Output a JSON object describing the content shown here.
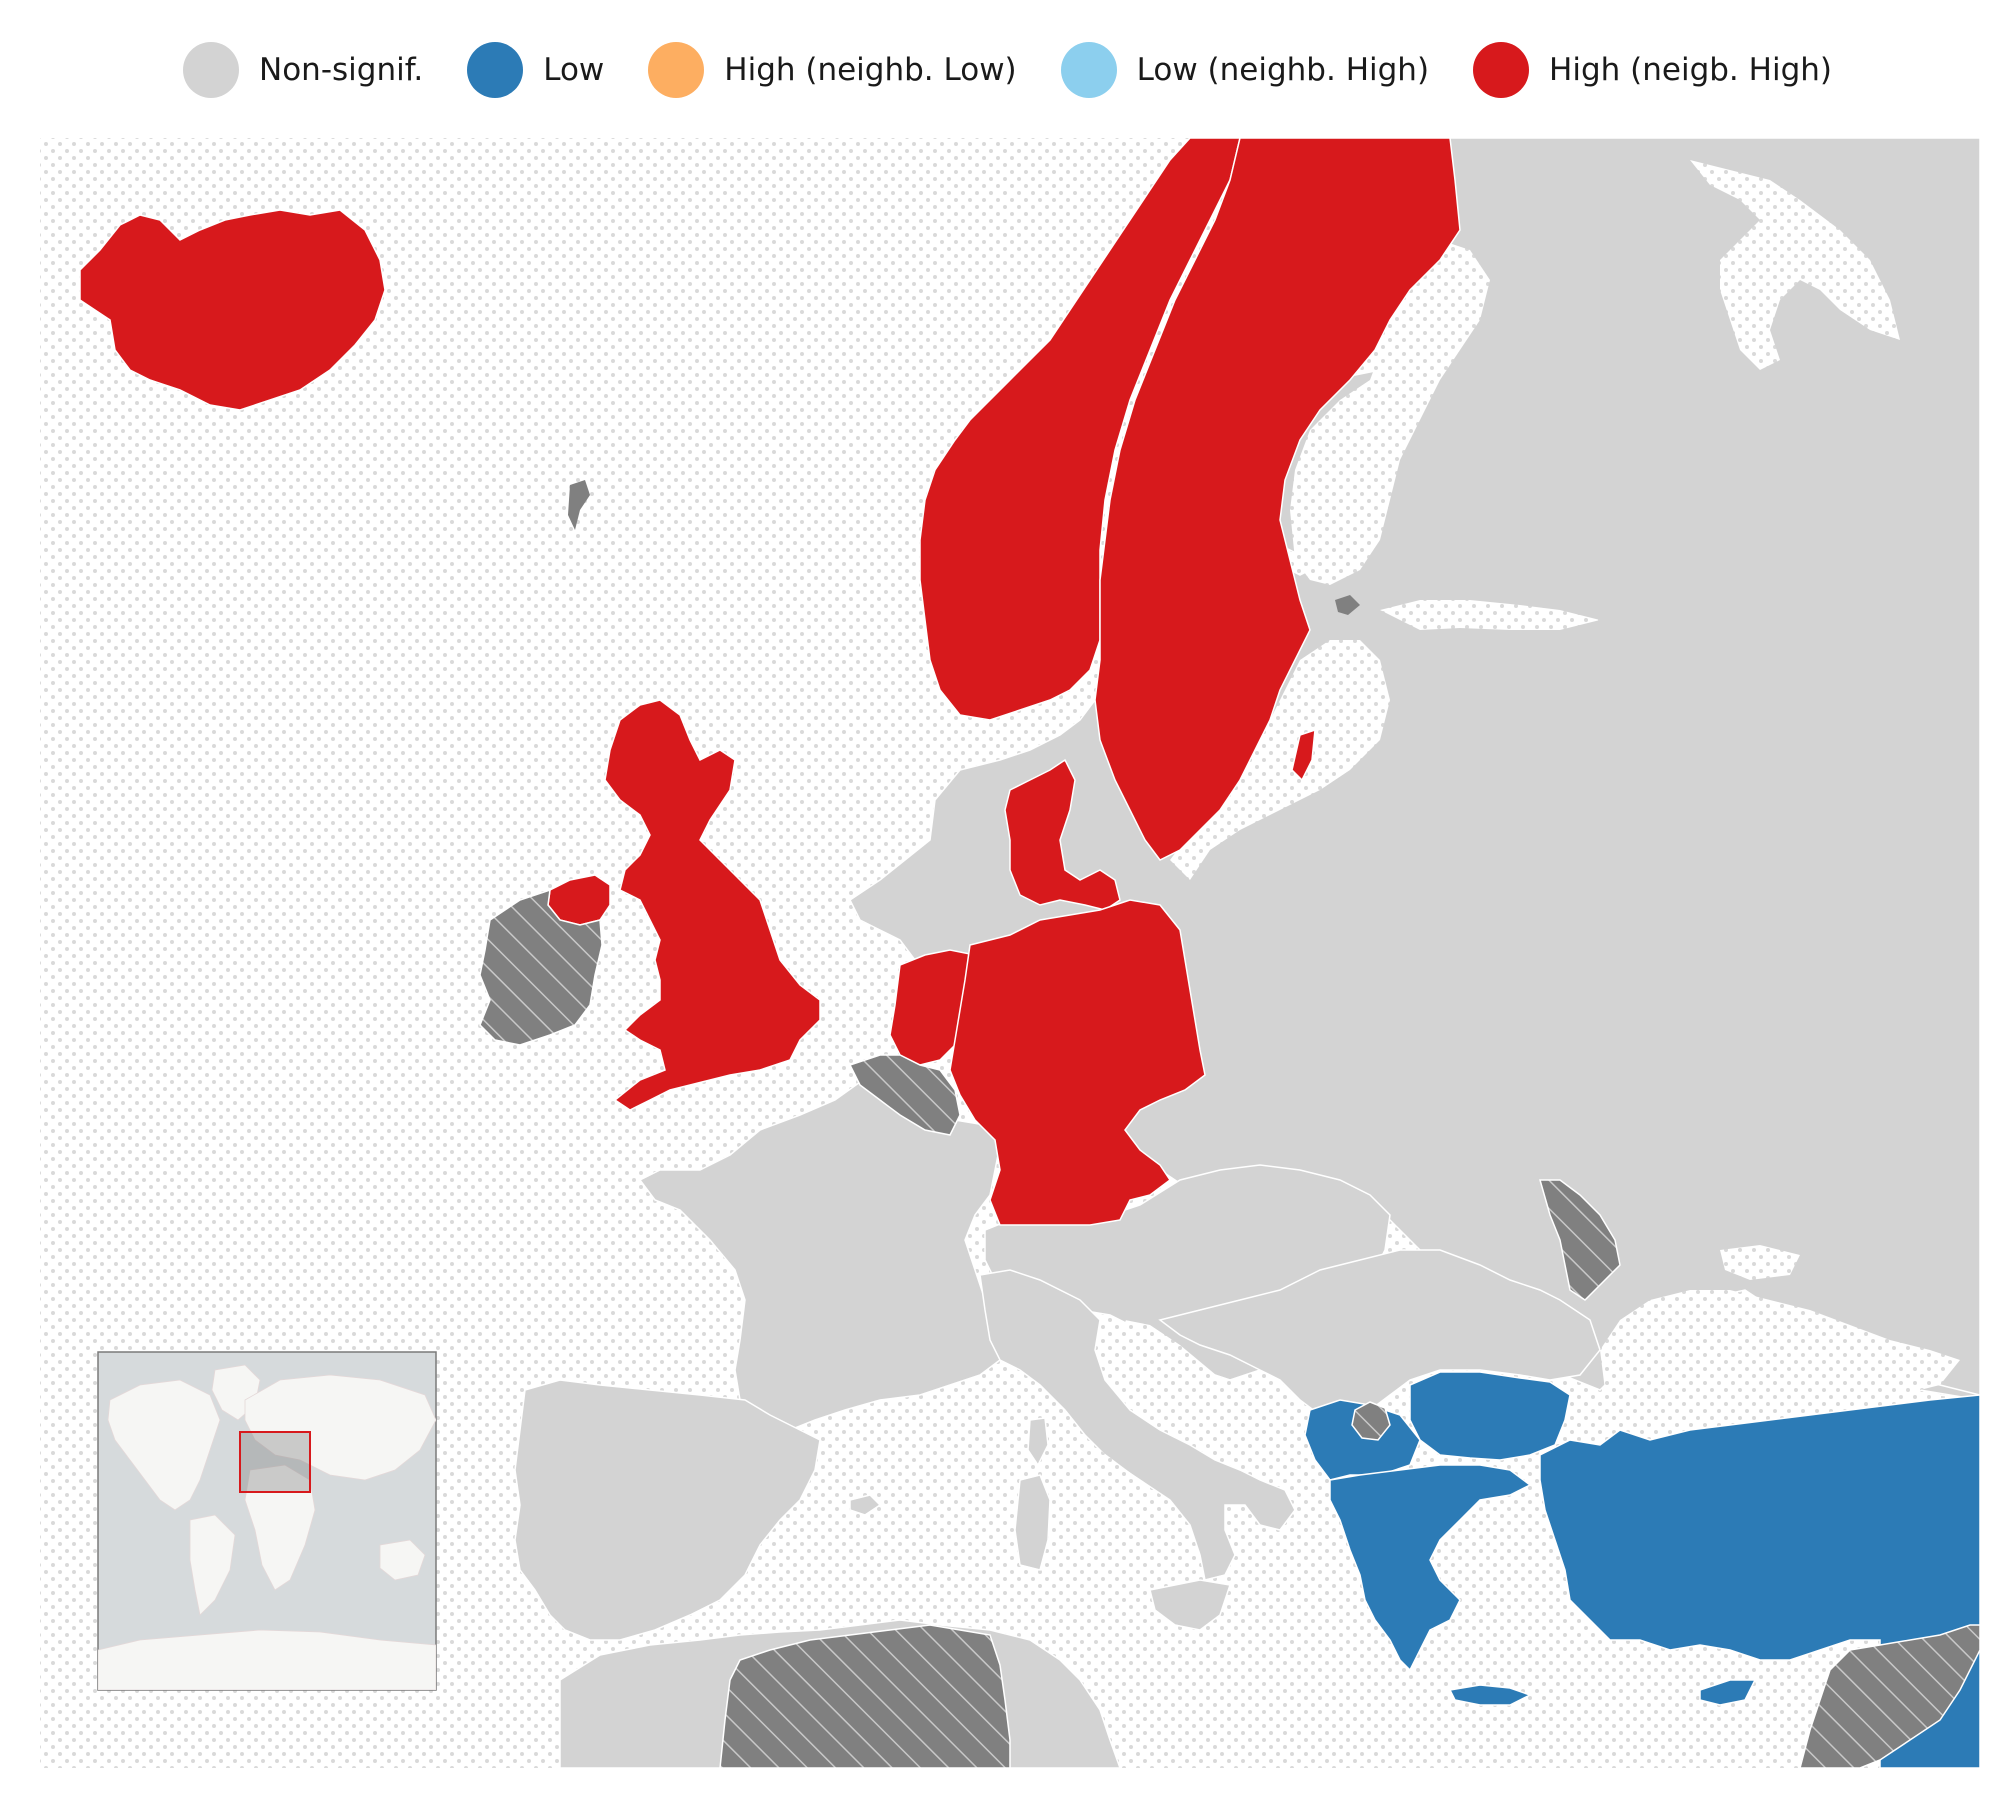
{
  "legend": [
    {
      "label": "Non-signif.",
      "color": "#d3d3d3",
      "category": "non-signif"
    },
    {
      "label": "Low",
      "color": "#2c7bb6",
      "category": "low"
    },
    {
      "label": "High (neighb. Low)",
      "color": "#fdae61",
      "category": "high-low"
    },
    {
      "label": "Low (neighb. High)",
      "color": "#8ccfee",
      "category": "low-high"
    },
    {
      "label": "High (neigb. High)",
      "color": "#d7191c",
      "category": "high-high"
    }
  ],
  "colors": {
    "sea_background": "#ffffff",
    "sea_dots": "#d9d9d9",
    "no_data_fill": "#808080",
    "no_data_hatch": "#c8c8c8",
    "borders": "#ffffff",
    "inset_frame": "#7a7a7a",
    "inset_ocean": "#d6dadc",
    "inset_land": "#f6f6f4",
    "inset_highlight": "#d7191c"
  },
  "regions": [
    {
      "name": "Iceland",
      "category": "high-high"
    },
    {
      "name": "Norway",
      "category": "high-high"
    },
    {
      "name": "Sweden",
      "category": "high-high"
    },
    {
      "name": "Denmark",
      "category": "high-high"
    },
    {
      "name": "United Kingdom",
      "category": "high-high"
    },
    {
      "name": "Netherlands",
      "category": "high-high"
    },
    {
      "name": "Germany",
      "category": "high-high"
    },
    {
      "name": "Finland",
      "category": "non-signif"
    },
    {
      "name": "Russia",
      "category": "non-signif"
    },
    {
      "name": "France",
      "category": "non-signif"
    },
    {
      "name": "Spain",
      "category": "non-signif"
    },
    {
      "name": "Portugal",
      "category": "non-signif"
    },
    {
      "name": "Italy",
      "category": "non-signif"
    },
    {
      "name": "Poland",
      "category": "non-signif"
    },
    {
      "name": "Ukraine",
      "category": "non-signif"
    },
    {
      "name": "Romania",
      "category": "non-signif"
    },
    {
      "name": "Greece",
      "category": "low"
    },
    {
      "name": "Bulgaria",
      "category": "low"
    },
    {
      "name": "Turkey",
      "category": "low"
    },
    {
      "name": "North Macedonia",
      "category": "low"
    },
    {
      "name": "Albania",
      "category": "low"
    },
    {
      "name": "Cyprus",
      "category": "low"
    },
    {
      "name": "Ireland",
      "category": "no-data"
    },
    {
      "name": "Belgium",
      "category": "no-data"
    },
    {
      "name": "Moldova",
      "category": "no-data"
    },
    {
      "name": "Kosovo",
      "category": "no-data"
    },
    {
      "name": "Tunisia",
      "category": "no-data"
    },
    {
      "name": "Syria",
      "category": "no-data"
    }
  ],
  "inset": {
    "name": "world-locator-inset"
  }
}
